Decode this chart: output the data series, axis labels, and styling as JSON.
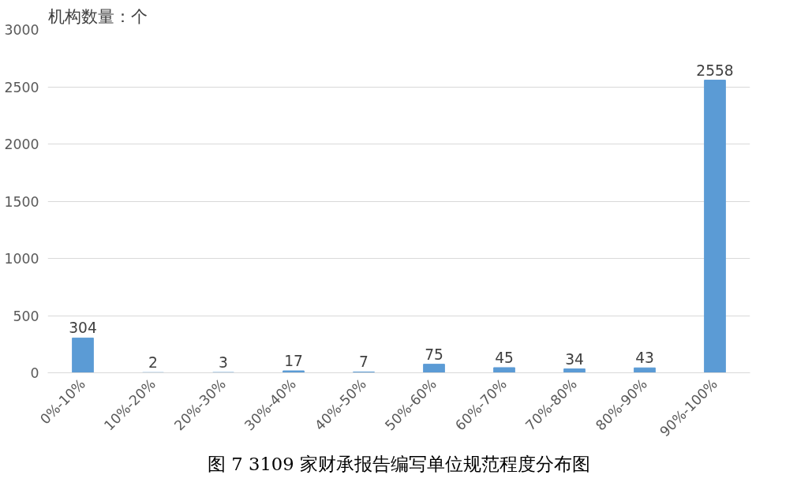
{
  "chart_data": {
    "type": "bar",
    "title": "图 7 3109 家财承报告编写单位规范程度分布图",
    "ylabel": "机构数量：个",
    "categories": [
      "0%-10%",
      "10%-20%",
      "20%-30%",
      "30%-40%",
      "40%-50%",
      "50%-60%",
      "60%-70%",
      "70%-80%",
      "80%-90%",
      "90%-100%"
    ],
    "values": [
      304,
      2,
      3,
      17,
      7,
      75,
      45,
      34,
      43,
      2558
    ],
    "color": "#5b9bd5",
    "ylim": [
      0,
      3000
    ],
    "yticks": [
      0,
      500,
      1000,
      1500,
      2000,
      2500,
      3000
    ],
    "grid": "y",
    "data_labels": true
  }
}
